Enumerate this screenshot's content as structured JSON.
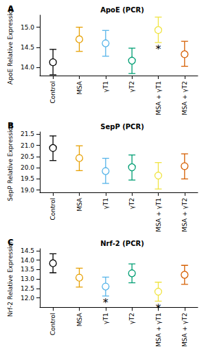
{
  "chart_data": [
    {
      "type": "scatter",
      "panel_label": "A",
      "title": "ApoE (PCR)",
      "y_label": "ApoE Relative Expression",
      "categories": [
        "Control",
        "MSA",
        "γT1",
        "γT2",
        "MSA + γT1",
        "MSA + γT2"
      ],
      "values": [
        14.13,
        14.7,
        14.6,
        14.17,
        14.93,
        14.33
      ],
      "error_low": [
        13.82,
        14.4,
        14.28,
        13.85,
        14.62,
        14.03
      ],
      "error_high": [
        14.45,
        15.0,
        14.92,
        14.48,
        15.25,
        14.65
      ],
      "colors": [
        "#000000",
        "#e69f00",
        "#56b4e9",
        "#009e73",
        "#f0e442",
        "#d55e00"
      ],
      "marker": "circle",
      "ylim": [
        13.8,
        15.3
      ],
      "yticks": [
        {
          "value": 14,
          "label": "14.0"
        },
        {
          "value": 14.5,
          "label": "14.5"
        },
        {
          "value": 15,
          "label": "15.0"
        }
      ],
      "grid": false,
      "annotations": [
        {
          "category": "MSA + γT1",
          "text": "*"
        }
      ]
    },
    {
      "type": "scatter",
      "panel_label": "B",
      "title": "SepP (PCR)",
      "y_label": "SepP Relative Expression",
      "categories": [
        "Control",
        "MSA",
        "γT1",
        "γT2",
        "MSA + γT1",
        "MSA + γT2"
      ],
      "values": [
        20.88,
        20.43,
        19.85,
        20.02,
        19.65,
        20.07
      ],
      "error_low": [
        20.32,
        19.87,
        19.3,
        19.45,
        19.05,
        19.5
      ],
      "error_high": [
        21.42,
        20.98,
        20.42,
        20.57,
        20.23,
        20.62
      ],
      "colors": [
        "#000000",
        "#e69f00",
        "#56b4e9",
        "#009e73",
        "#f0e442",
        "#d55e00"
      ],
      "marker": "circle",
      "ylim": [
        18.9,
        21.6
      ],
      "yticks": [
        {
          "value": 19,
          "label": "19.0"
        },
        19.5,
        {
          "value": 20,
          "label": "20.0"
        },
        20.5,
        {
          "value": 21,
          "label": "21.0"
        },
        21.5
      ],
      "grid": false,
      "annotations": []
    },
    {
      "type": "scatter",
      "panel_label": "C",
      "title": "Nrf-2 (PCR)",
      "y_label": "Nrf-2 Relative Expression",
      "categories": [
        "Control",
        "MSA",
        "γT1",
        "γT2",
        "MSA + γT1",
        "MSA + γT2"
      ],
      "values": [
        13.83,
        13.07,
        12.6,
        13.3,
        12.33,
        13.22
      ],
      "error_low": [
        13.33,
        12.57,
        12.1,
        12.8,
        11.83,
        12.72
      ],
      "error_high": [
        14.33,
        13.57,
        13.1,
        13.8,
        12.83,
        13.72
      ],
      "colors": [
        "#000000",
        "#e69f00",
        "#56b4e9",
        "#009e73",
        "#f0e442",
        "#d55e00"
      ],
      "marker": "circle",
      "ylim": [
        11.5,
        14.6
      ],
      "yticks": [
        {
          "value": 12,
          "label": "12.0"
        },
        12.5,
        {
          "value": 13,
          "label": "13.0"
        },
        13.5,
        {
          "value": 14,
          "label": "14.0"
        },
        14.5
      ],
      "grid": false,
      "annotations": [
        {
          "category": "γT1",
          "text": "*"
        },
        {
          "category": "MSA + γT1",
          "text": "*"
        }
      ]
    }
  ]
}
